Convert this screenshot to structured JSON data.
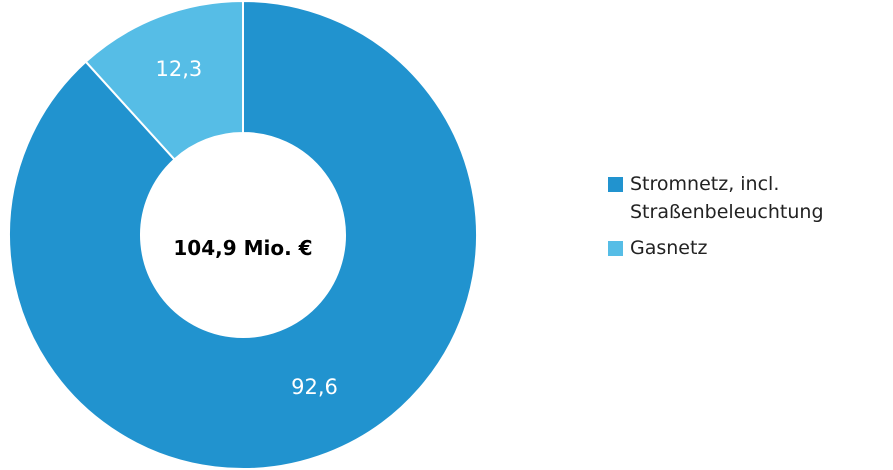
{
  "chart_data": {
    "type": "pie",
    "variant": "donut",
    "title": "",
    "center_label": "104,9 Mio. €",
    "slices": [
      {
        "name": "Stromnetz, incl. Straßenbeleuchtung",
        "value": 92.6,
        "label": "92,6",
        "color": "#2193cf"
      },
      {
        "name": "Gasnetz",
        "value": 12.3,
        "label": "12,3",
        "color": "#56bde6"
      }
    ],
    "legend_placement": "right"
  },
  "legend": {
    "items": [
      {
        "line1": "Stromnetz, incl.",
        "line2": "Straßenbeleuchtung",
        "color": "#2193cf"
      },
      {
        "line1": "Gasnetz",
        "line2": "",
        "color": "#56bde6"
      }
    ]
  }
}
